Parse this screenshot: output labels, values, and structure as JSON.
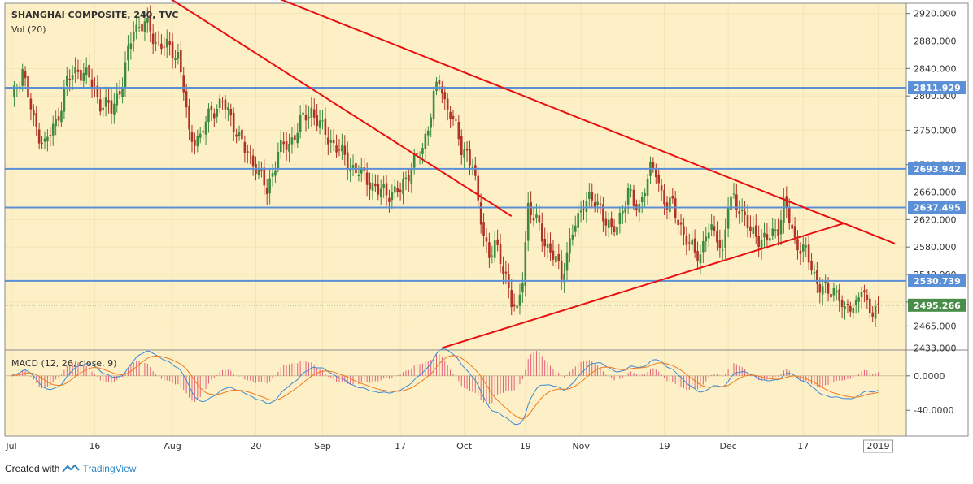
{
  "header": {
    "title": "SHANGHAI COMPOSITE, 240, TVC",
    "volume_label": "Vol (20)",
    "macd_label": "MACD (12, 26, close, 9)"
  },
  "footer": {
    "created_with": "Created with",
    "brand": "TradingView"
  },
  "colors": {
    "background": "#fdf0c7",
    "grid": "#f3e5b4",
    "up": "#3c8a3c",
    "down": "#b03222",
    "level_line": "#5b8fd6",
    "trend_line": "#e81010",
    "macd_line": "#3a8ad8",
    "signal_line": "#f07a1e",
    "histogram": "#e0607a",
    "last_price": "#4a8c4a"
  },
  "chart_data": {
    "type": "candlestick",
    "price_axis": {
      "ticks": [
        "2920.000",
        "2880.000",
        "2840.000",
        "2800.000",
        "2750.000",
        "2700.000",
        "2660.000",
        "2620.000",
        "2580.000",
        "2540.000",
        "2500.000",
        "2465.000",
        "2433.000"
      ],
      "tick_values": [
        2920,
        2880,
        2840,
        2800,
        2750,
        2700,
        2660,
        2620,
        2580,
        2540,
        2500,
        2465,
        2433
      ],
      "ylim": [
        2430,
        2935
      ]
    },
    "time_axis": {
      "labels": [
        "Jul",
        "16",
        "Aug",
        "20",
        "Sep",
        "17",
        "Oct",
        "19",
        "Nov",
        "19",
        "Dec",
        "17",
        "2019"
      ],
      "index": [
        0,
        30,
        58,
        88,
        112,
        140,
        163,
        185,
        205,
        235,
        258,
        285,
        312
      ]
    },
    "levels": [
      {
        "value": 2811.929,
        "label": "2811.929"
      },
      {
        "value": 2693.942,
        "label": "2693.942"
      },
      {
        "value": 2637.495,
        "label": "2637.495"
      },
      {
        "value": 2530.739,
        "label": "2530.739"
      }
    ],
    "last_price": {
      "value": 2495.266,
      "label": "2495.266"
    },
    "trendlines": [
      {
        "from": {
          "i": 52,
          "v": 2955
        },
        "to": {
          "i": 180,
          "v": 2625
        }
      },
      {
        "from": {
          "i": 88,
          "v": 2955
        },
        "to": {
          "i": 318,
          "v": 2585
        }
      },
      {
        "from": {
          "i": 155,
          "v": 2433
        },
        "to": {
          "i": 300,
          "v": 2615
        }
      }
    ],
    "anchors": [
      [
        0,
        2790
      ],
      [
        4,
        2840
      ],
      [
        8,
        2760
      ],
      [
        12,
        2730
      ],
      [
        16,
        2760
      ],
      [
        20,
        2820
      ],
      [
        24,
        2840
      ],
      [
        28,
        2825
      ],
      [
        32,
        2790
      ],
      [
        36,
        2780
      ],
      [
        40,
        2820
      ],
      [
        44,
        2900
      ],
      [
        48,
        2905
      ],
      [
        52,
        2880
      ],
      [
        56,
        2870
      ],
      [
        60,
        2860
      ],
      [
        62,
        2810
      ],
      [
        64,
        2740
      ],
      [
        68,
        2740
      ],
      [
        72,
        2780
      ],
      [
        76,
        2790
      ],
      [
        80,
        2760
      ],
      [
        84,
        2720
      ],
      [
        88,
        2700
      ],
      [
        92,
        2660
      ],
      [
        96,
        2720
      ],
      [
        100,
        2730
      ],
      [
        104,
        2760
      ],
      [
        108,
        2780
      ],
      [
        112,
        2750
      ],
      [
        116,
        2730
      ],
      [
        120,
        2710
      ],
      [
        124,
        2690
      ],
      [
        128,
        2680
      ],
      [
        132,
        2660
      ],
      [
        136,
        2660
      ],
      [
        140,
        2660
      ],
      [
        144,
        2700
      ],
      [
        148,
        2720
      ],
      [
        150,
        2760
      ],
      [
        152,
        2800
      ],
      [
        154,
        2820
      ],
      [
        156,
        2790
      ],
      [
        158,
        2780
      ],
      [
        160,
        2750
      ],
      [
        162,
        2720
      ],
      [
        164,
        2720
      ],
      [
        166,
        2700
      ],
      [
        168,
        2640
      ],
      [
        170,
        2600
      ],
      [
        172,
        2570
      ],
      [
        174,
        2580
      ],
      [
        176,
        2560
      ],
      [
        178,
        2540
      ],
      [
        180,
        2500
      ],
      [
        182,
        2480
      ],
      [
        184,
        2540
      ],
      [
        186,
        2640
      ],
      [
        188,
        2620
      ],
      [
        190,
        2610
      ],
      [
        192,
        2590
      ],
      [
        194,
        2570
      ],
      [
        196,
        2560
      ],
      [
        198,
        2540
      ],
      [
        200,
        2570
      ],
      [
        202,
        2600
      ],
      [
        204,
        2620
      ],
      [
        206,
        2650
      ],
      [
        208,
        2650
      ],
      [
        210,
        2640
      ],
      [
        212,
        2640
      ],
      [
        214,
        2620
      ],
      [
        216,
        2600
      ],
      [
        218,
        2610
      ],
      [
        220,
        2640
      ],
      [
        222,
        2660
      ],
      [
        224,
        2640
      ],
      [
        226,
        2640
      ],
      [
        228,
        2670
      ],
      [
        230,
        2690
      ],
      [
        232,
        2690
      ],
      [
        234,
        2660
      ],
      [
        236,
        2640
      ],
      [
        238,
        2640
      ],
      [
        240,
        2620
      ],
      [
        242,
        2600
      ],
      [
        244,
        2580
      ],
      [
        246,
        2575
      ],
      [
        248,
        2570
      ],
      [
        250,
        2600
      ],
      [
        252,
        2600
      ],
      [
        254,
        2600
      ],
      [
        256,
        2570
      ],
      [
        258,
        2640
      ],
      [
        260,
        2650
      ],
      [
        262,
        2640
      ],
      [
        264,
        2620
      ],
      [
        266,
        2600
      ],
      [
        268,
        2600
      ],
      [
        270,
        2590
      ],
      [
        272,
        2590
      ],
      [
        274,
        2600
      ],
      [
        276,
        2610
      ],
      [
        278,
        2640
      ],
      [
        280,
        2620
      ],
      [
        282,
        2590
      ],
      [
        284,
        2580
      ],
      [
        286,
        2570
      ],
      [
        288,
        2550
      ],
      [
        290,
        2530
      ],
      [
        292,
        2520
      ],
      [
        294,
        2510
      ],
      [
        296,
        2520
      ],
      [
        298,
        2510
      ],
      [
        300,
        2480
      ],
      [
        302,
        2495
      ],
      [
        304,
        2500
      ],
      [
        306,
        2520
      ],
      [
        308,
        2490
      ],
      [
        310,
        2490
      ],
      [
        312,
        2495
      ]
    ],
    "macd": {
      "ylim": [
        -70,
        30
      ],
      "ticks": [
        "0.0000",
        "-40.0000"
      ],
      "tick_values": [
        0,
        -40
      ]
    },
    "grid": true,
    "legend": "top-left"
  }
}
